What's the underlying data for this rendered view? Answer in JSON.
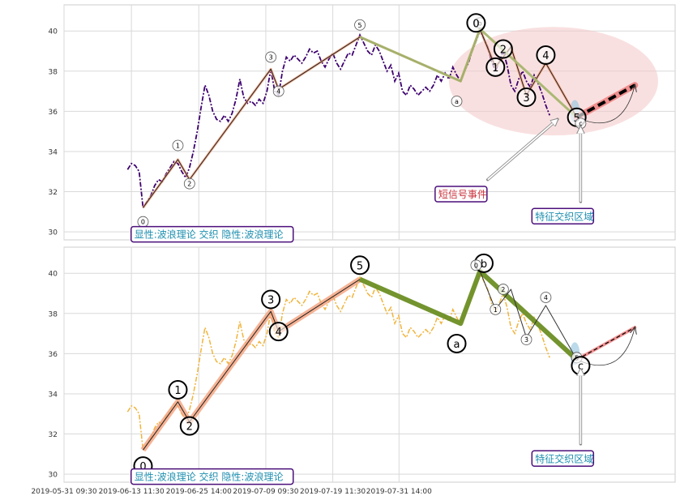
{
  "chart_data": {
    "type": "line",
    "x_ticks": [
      "2019-05-31 09:30",
      "2019-06-13 11:30",
      "2019-06-25 14:00",
      "2019-07-09 09:30",
      "2019-07-19 11:30",
      "2019-07-31 14:00"
    ],
    "ylim": [
      29.6,
      41.3
    ],
    "y_ticks": [
      30,
      32,
      34,
      36,
      38,
      40
    ],
    "grid": true,
    "panels": [
      {
        "price_color": "#3d006f",
        "price_series": [
          33.1,
          33.4,
          33.3,
          33.0,
          31.2,
          31.5,
          31.8,
          32.3,
          32.6,
          32.5,
          32.9,
          33.2,
          33.5,
          33.4,
          33.0,
          32.7,
          33.2,
          34.0,
          35.0,
          36.2,
          37.3,
          36.8,
          36.0,
          35.6,
          35.5,
          35.8,
          35.5,
          35.9,
          36.6,
          37.6,
          36.7,
          36.4,
          36.5,
          36.3,
          36.6,
          36.4,
          37.0,
          38.1,
          37.0,
          36.8,
          38.0,
          38.7,
          38.5,
          38.8,
          38.6,
          38.4,
          38.7,
          39.1,
          38.9,
          39.0,
          38.5,
          38.2,
          38.6,
          38.9,
          38.4,
          38.1,
          38.5,
          38.9,
          38.8,
          39.3,
          39.8,
          39.4,
          39.0,
          38.8,
          39.3,
          39.0,
          38.5,
          38.0,
          38.3,
          37.5,
          37.9,
          37.0,
          36.8,
          37.3,
          37.1,
          36.8,
          37.0,
          37.2,
          37.0,
          37.3,
          37.8,
          37.5,
          37.9,
          37.6,
          38.2,
          37.8,
          37.5,
          38.0,
          38.4,
          39.0,
          39.5,
          40.0,
          39.6,
          39.2,
          38.5,
          38.0,
          38.5,
          39.0,
          38.3,
          37.3,
          37.0,
          37.6,
          38.0,
          37.5,
          37.2,
          37.8,
          37.4,
          36.9,
          36.3,
          35.8
        ],
        "wave_line": [
          [
            4,
            31.2
          ],
          [
            13,
            33.6
          ],
          [
            16,
            32.6
          ],
          [
            37,
            38.1
          ],
          [
            39,
            37.1
          ],
          [
            60,
            39.7
          ],
          [
            86,
            37.5
          ],
          [
            91,
            40.1
          ],
          [
            95,
            38.2
          ],
          [
            99,
            39.2
          ],
          [
            103,
            36.8
          ],
          [
            108,
            38.4
          ],
          [
            116,
            35.7
          ]
        ],
        "wave_line_color": "#f4a07a",
        "correction_line": [
          [
            60,
            39.7
          ],
          [
            86,
            37.5
          ],
          [
            91,
            40.1
          ],
          [
            116,
            35.7
          ]
        ],
        "correction_color": "#a7b56e",
        "forecast": [
          [
            116,
            35.7
          ],
          [
            131,
            37.3
          ]
        ],
        "wave_labels": [
          {
            "text": "0",
            "x": 4,
            "y": 30.5,
            "size": "small"
          },
          {
            "text": "1",
            "x": 13,
            "y": 34.3,
            "size": "small"
          },
          {
            "text": "2",
            "x": 16,
            "y": 32.4,
            "size": "small"
          },
          {
            "text": "3",
            "x": 37,
            "y": 38.7,
            "size": "small"
          },
          {
            "text": "4",
            "x": 39,
            "y": 37.0,
            "size": "small"
          },
          {
            "text": "5",
            "x": 60,
            "y": 40.3,
            "size": "small"
          },
          {
            "text": "a",
            "x": 85,
            "y": 36.5,
            "size": "small"
          },
          {
            "text": "b",
            "x": 91,
            "y": 40.4,
            "size": "small"
          },
          {
            "text": "0",
            "x": 90,
            "y": 40.4,
            "size": "big"
          },
          {
            "text": "1",
            "x": 95,
            "y": 38.2,
            "size": "big"
          },
          {
            "text": "2",
            "x": 97,
            "y": 39.1,
            "size": "big"
          },
          {
            "text": "3",
            "x": 103,
            "y": 36.7,
            "size": "big"
          },
          {
            "text": "4",
            "x": 108,
            "y": 38.8,
            "size": "big"
          },
          {
            "text": "5",
            "x": 116,
            "y": 35.7,
            "size": "big"
          },
          {
            "text": "c",
            "x": 117,
            "y": 35.4,
            "size": "small"
          }
        ],
        "highlight_ellipse": {
          "cx": 110,
          "cy": 37.5,
          "rx": 27,
          "ry": 2.7
        },
        "annotations": [
          {
            "text": "显性:波浪理论 交织 隐性:波浪理论",
            "x": 0.5,
            "y": 29.9,
            "color": "#1f8fb0",
            "anchor": "start"
          },
          {
            "text": "短信号事件",
            "x": 79,
            "y": 31.9,
            "color": "#c8323c",
            "anchor": "start"
          },
          {
            "text": "特征交织区域",
            "x": 104,
            "y": 30.8,
            "color": "#1f8fb0",
            "anchor": "start"
          }
        ],
        "arrows": [
          {
            "from": [
              93,
              32.6
            ],
            "to": [
              111,
              35.6
            ]
          },
          {
            "from": [
              117,
              31.5
            ],
            "to": [
              117,
              35.2
            ]
          }
        ]
      },
      {
        "price_color": "#f0b43c",
        "price_series": [
          33.1,
          33.4,
          33.3,
          33.0,
          31.2,
          31.5,
          31.8,
          32.3,
          32.6,
          32.5,
          32.9,
          33.2,
          33.5,
          33.4,
          33.0,
          32.7,
          33.2,
          34.0,
          35.0,
          36.2,
          37.3,
          36.8,
          36.0,
          35.6,
          35.5,
          35.8,
          35.5,
          35.9,
          36.6,
          37.6,
          36.7,
          36.4,
          36.5,
          36.3,
          36.6,
          36.4,
          37.0,
          38.1,
          37.0,
          36.8,
          38.0,
          38.7,
          38.5,
          38.8,
          38.6,
          38.4,
          38.7,
          39.1,
          38.9,
          39.0,
          38.5,
          38.2,
          38.6,
          38.9,
          38.4,
          38.1,
          38.5,
          38.9,
          38.8,
          39.3,
          39.8,
          39.4,
          39.0,
          38.8,
          39.3,
          39.0,
          38.5,
          38.0,
          38.3,
          37.5,
          37.9,
          37.0,
          36.8,
          37.3,
          37.1,
          36.8,
          37.0,
          37.2,
          37.0,
          37.3,
          37.8,
          37.5,
          37.9,
          37.6,
          38.2,
          37.8,
          37.5,
          38.0,
          38.4,
          39.0,
          39.5,
          40.0,
          39.6,
          39.2,
          38.5,
          38.0,
          38.5,
          39.0,
          38.3,
          37.3,
          37.0,
          37.6,
          38.0,
          37.5,
          37.2,
          37.8,
          37.4,
          36.9,
          36.3,
          35.8
        ],
        "wave_line": [
          [
            4,
            31.2
          ],
          [
            13,
            33.6
          ],
          [
            16,
            32.6
          ],
          [
            37,
            38.1
          ],
          [
            39,
            37.1
          ],
          [
            60,
            39.7
          ]
        ],
        "wave_line_color": "#f4a07a",
        "correction_line": [
          [
            60,
            39.7
          ],
          [
            86,
            37.5
          ],
          [
            91,
            40.1
          ],
          [
            116,
            35.7
          ]
        ],
        "correction_color": "#6b8e23",
        "sub_wave": [
          [
            91,
            40.1
          ],
          [
            95,
            38.2
          ],
          [
            99,
            39.2
          ],
          [
            103,
            36.8
          ],
          [
            108,
            38.4
          ],
          [
            116,
            35.7
          ]
        ],
        "forecast": [
          [
            116,
            35.7
          ],
          [
            131,
            37.3
          ]
        ],
        "wave_labels": [
          {
            "text": "0",
            "x": 4,
            "y": 30.4,
            "size": "big"
          },
          {
            "text": "1",
            "x": 13,
            "y": 34.2,
            "size": "big"
          },
          {
            "text": "2",
            "x": 16,
            "y": 32.4,
            "size": "big"
          },
          {
            "text": "3",
            "x": 37,
            "y": 38.7,
            "size": "big"
          },
          {
            "text": "4",
            "x": 39,
            "y": 37.1,
            "size": "big"
          },
          {
            "text": "5",
            "x": 60,
            "y": 40.4,
            "size": "big"
          },
          {
            "text": "a",
            "x": 85,
            "y": 36.5,
            "size": "big"
          },
          {
            "text": "b",
            "x": 92,
            "y": 40.5,
            "size": "big"
          },
          {
            "text": "0",
            "x": 90,
            "y": 40.4,
            "size": "small"
          },
          {
            "text": "1",
            "x": 95,
            "y": 38.2,
            "size": "small"
          },
          {
            "text": "2",
            "x": 97,
            "y": 39.2,
            "size": "small"
          },
          {
            "text": "3",
            "x": 103,
            "y": 36.7,
            "size": "small"
          },
          {
            "text": "4",
            "x": 108,
            "y": 38.8,
            "size": "small"
          },
          {
            "text": "5",
            "x": 116,
            "y": 35.8,
            "size": "small"
          },
          {
            "text": "c",
            "x": 117,
            "y": 35.4,
            "size": "big"
          }
        ],
        "annotations": [
          {
            "text": "显性:波浪理论 交织 隐性:波浪理论",
            "x": 0.5,
            "y": 29.9,
            "color": "#1f8fb0",
            "anchor": "start"
          },
          {
            "text": "特征交织区域",
            "x": 104,
            "y": 30.8,
            "color": "#1f8fb0",
            "anchor": "start"
          }
        ],
        "arrows": [
          {
            "from": [
              117,
              31.5
            ],
            "to": [
              117,
              35.2
            ]
          }
        ]
      }
    ]
  }
}
